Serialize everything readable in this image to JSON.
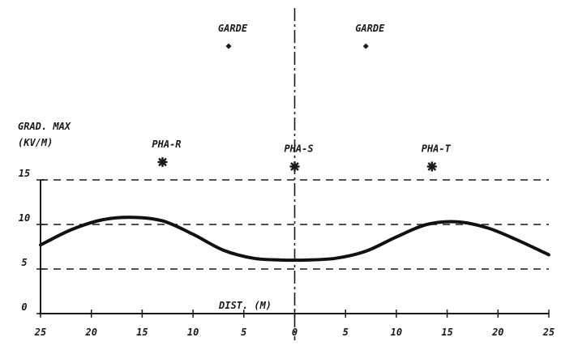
{
  "chart_data": {
    "type": "line",
    "ylabel_line1": "GRAD. MAX",
    "ylabel_line2": "(KV/M)",
    "xlabel": "DIST. (M)",
    "xlim": [
      -25,
      25
    ],
    "ylim": [
      0,
      15
    ],
    "x_tick_labels": [
      "25",
      "20",
      "15",
      "10",
      "5",
      "0",
      "5",
      "10",
      "15",
      "20",
      "25"
    ],
    "y_tick_labels": [
      "0",
      "5",
      "10",
      "15"
    ],
    "reference_lines_y": [
      15,
      10,
      5
    ],
    "center_line_x": 0,
    "series": [
      {
        "x": [
          -25,
          -22,
          -19,
          -16,
          -13,
          -10,
          -7,
          -4,
          -1,
          0,
          1,
          4,
          7,
          10,
          13,
          16,
          19,
          22,
          25
        ],
        "y": [
          7.7,
          9.4,
          10.5,
          10.8,
          10.4,
          8.9,
          7.1,
          6.2,
          6.0,
          6.0,
          6.0,
          6.2,
          7.0,
          8.6,
          10.0,
          10.3,
          9.6,
          8.2,
          6.6
        ]
      }
    ],
    "conductors": [
      {
        "label": "GARDE",
        "x": -6.5,
        "y": 30.0,
        "marker": "dot"
      },
      {
        "label": "GARDE",
        "x": 7.0,
        "y": 30.0,
        "marker": "dot"
      },
      {
        "label": "PHA-R",
        "x": -13.0,
        "y": 17.0,
        "marker": "cross"
      },
      {
        "label": "PHA-S",
        "x": 0.0,
        "y": 16.5,
        "marker": "cross"
      },
      {
        "label": "PHA-T",
        "x": 13.5,
        "y": 16.5,
        "marker": "cross"
      }
    ]
  }
}
